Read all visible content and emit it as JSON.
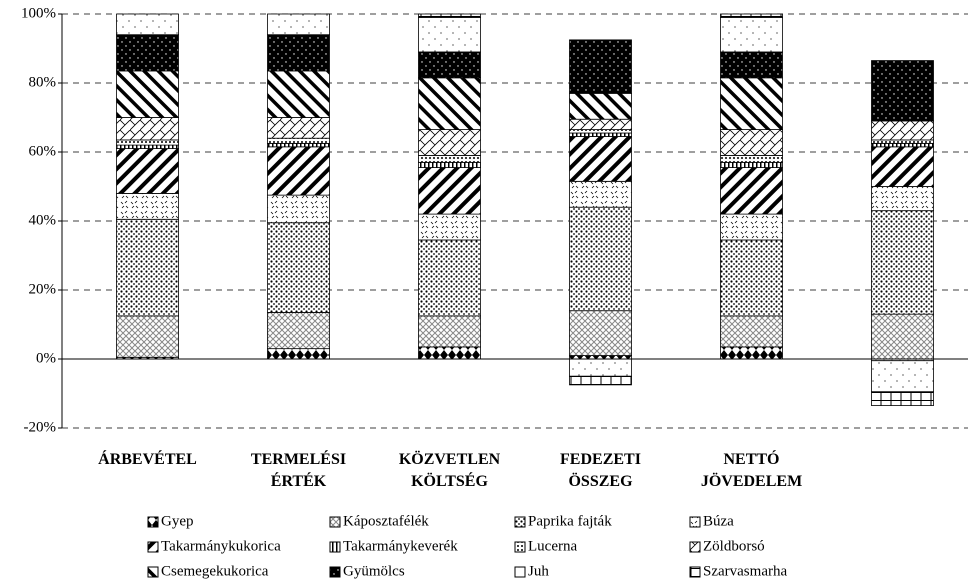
{
  "chart_data": {
    "type": "stacked_bar",
    "categories": [
      "ÁRBEVÉTEL",
      "TERMELÉSI ÉRTÉK",
      "KÖZVETLEN KÖLTSÉG",
      "FEDEZETI ÖSSZEG",
      "NETTÓ JÖVEDELEM",
      null
    ],
    "series": [
      {
        "name": "Gyep",
        "color": "#000000",
        "values": [
          0.5,
          3,
          3.5,
          1,
          3.5,
          -0.5
        ]
      },
      {
        "name": "Káposztafélék",
        "color": "#000000",
        "values": [
          12,
          10.5,
          9,
          13,
          9,
          13
        ]
      },
      {
        "name": "Paprika fajták",
        "color": "#000000",
        "values": [
          28,
          26,
          22,
          30,
          22,
          30
        ]
      },
      {
        "name": "Búza",
        "color": "#000000",
        "values": [
          7.5,
          8,
          7.5,
          7.5,
          7.5,
          7
        ]
      },
      {
        "name": "Takarmánykukorica",
        "color": "#000000",
        "values": [
          13,
          14,
          13.5,
          13,
          13.5,
          11.5
        ]
      },
      {
        "name": "Takarmánykeverék",
        "color": "#000000",
        "values": [
          1,
          1,
          1.5,
          1,
          1.5,
          1
        ]
      },
      {
        "name": "Lucerna",
        "color": "#000000",
        "values": [
          1.5,
          1.5,
          2,
          1,
          2,
          1
        ]
      },
      {
        "name": "Zöldborsó",
        "color": "#000000",
        "values": [
          6.5,
          6,
          7.5,
          3,
          7.5,
          5.5
        ]
      },
      {
        "name": "Csemegekukorica",
        "color": "#000000",
        "values": [
          13.5,
          13.5,
          15,
          7.5,
          15,
          0
        ]
      },
      {
        "name": "Gyümölcs",
        "color": "#000000",
        "values": [
          10.5,
          10.5,
          7.5,
          15.5,
          7.5,
          17.5
        ]
      },
      {
        "name": "Juh",
        "color": "#000000",
        "values": [
          6,
          6,
          10,
          -5,
          10,
          -9
        ]
      },
      {
        "name": "Szarvasmarha",
        "color": "#000000",
        "values": [
          0,
          0,
          1,
          -2.5,
          1,
          -4
        ]
      }
    ],
    "ylim": [
      -20,
      100
    ],
    "yticks": [
      {
        "value": -20,
        "label": "-20%"
      },
      {
        "value": 0,
        "label": "0%"
      },
      {
        "value": 20,
        "label": "20%"
      },
      {
        "value": 40,
        "label": "40%"
      },
      {
        "value": 60,
        "label": "60%"
      },
      {
        "value": 80,
        "label": "80%"
      },
      {
        "value": 100,
        "label": "100%"
      }
    ],
    "grid": true,
    "legend": "bottom"
  }
}
